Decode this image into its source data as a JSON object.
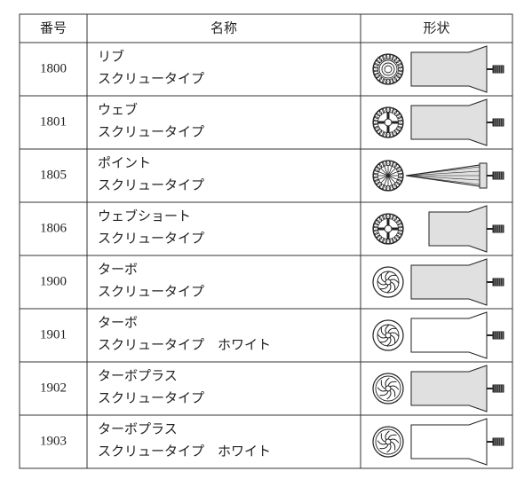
{
  "table": {
    "headers": [
      "番号",
      "名称",
      "形状"
    ],
    "rows": [
      {
        "number": "1800",
        "name": [
          "リブ",
          "スクリュータイプ"
        ]
      },
      {
        "number": "1801",
        "name": [
          "ウェブ",
          "スクリュータイプ"
        ]
      },
      {
        "number": "1805",
        "name": [
          "ポイント",
          "スクリュータイプ"
        ]
      },
      {
        "number": "1806",
        "name": [
          "ウェブショート",
          "スクリュータイプ"
        ]
      },
      {
        "number": "1900",
        "name": [
          "ターボ",
          "スクリュータイプ"
        ]
      },
      {
        "number": "1901",
        "name": [
          "ターボ",
          "スクリュータイプ　ホワイト"
        ]
      },
      {
        "number": "1902",
        "name": [
          "ターボプラス",
          "スクリュータイプ"
        ]
      },
      {
        "number": "1903",
        "name": [
          "ターボプラス",
          "スクリュータイプ　ホワイト"
        ]
      }
    ]
  }
}
